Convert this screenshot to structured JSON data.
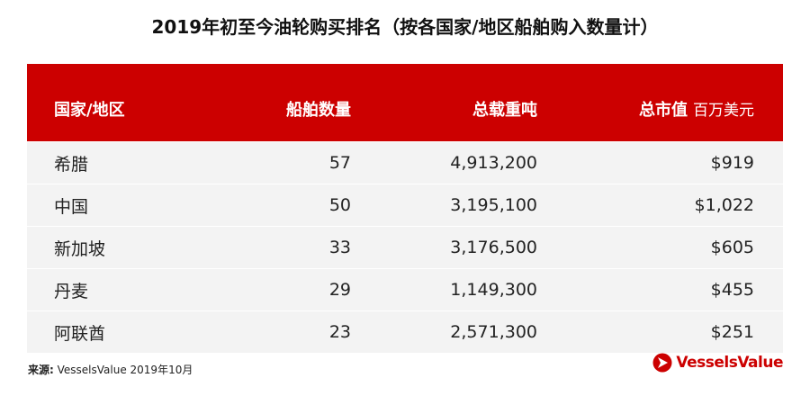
{
  "title": "2019年初至今油轮购买排名（按各国家/地区船舶购入数量计）",
  "chart_data": {
    "type": "table",
    "title": "2019年初至今油轮购买排名（按各国家/地区船舶购入数量计）",
    "columns": [
      "国家/地区",
      "船舶数量",
      "总载重吨",
      "总市值"
    ],
    "value_unit": "百万美元",
    "rows": [
      [
        "希腊",
        "57",
        "4,913,200",
        "$919"
      ],
      [
        "中国",
        "50",
        "3,195,100",
        "$1,022"
      ],
      [
        "新加坡",
        "33",
        "3,176,500",
        "$605"
      ],
      [
        "丹麦",
        "29",
        "1,149,300",
        "$455"
      ],
      [
        "阿联酋",
        "23",
        "2,571,300",
        "$251"
      ]
    ]
  },
  "footer": {
    "source_label": "来源:",
    "source_text": " VesselsValue 2019年10月",
    "logo_text": "VesselsValue"
  },
  "colors": {
    "header": "#cc0000",
    "row": "#f3f3f3"
  }
}
